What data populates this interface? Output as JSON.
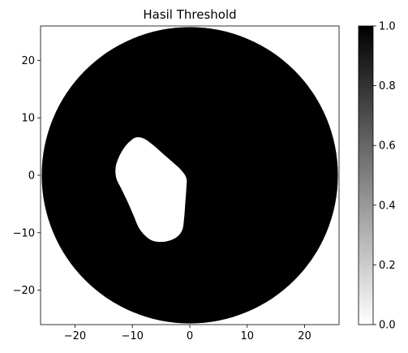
{
  "chart_data": {
    "type": "heatmap",
    "title": "Hasil Threshold",
    "xlabel": "",
    "ylabel": "",
    "xlim": [
      -26,
      26
    ],
    "ylim": [
      -26,
      26
    ],
    "x_ticks": [
      -20,
      -10,
      0,
      10,
      20
    ],
    "y_ticks": [
      -20,
      -10,
      0,
      10,
      20
    ],
    "x_tick_labels": [
      "−20",
      "−10",
      "0",
      "10",
      "20"
    ],
    "y_tick_labels": [
      "−20",
      "−10",
      "0",
      "10",
      "20"
    ],
    "grid": false,
    "background_value": 0,
    "disk": {
      "center": [
        0,
        0
      ],
      "radius": 25.8,
      "value": 1
    },
    "hole": {
      "value": 0,
      "outline": [
        [
          -9.3,
          6.6
        ],
        [
          -8.0,
          6.4
        ],
        [
          -6.3,
          5.2
        ],
        [
          -4.5,
          3.6
        ],
        [
          -2.9,
          2.2
        ],
        [
          -1.5,
          0.9
        ],
        [
          -0.6,
          -0.5
        ],
        [
          -0.6,
          -2.2
        ],
        [
          -0.8,
          -5.0
        ],
        [
          -1.0,
          -7.6
        ],
        [
          -1.3,
          -9.5
        ],
        [
          -2.2,
          -10.7
        ],
        [
          -3.6,
          -11.4
        ],
        [
          -5.0,
          -11.6
        ],
        [
          -6.5,
          -11.4
        ],
        [
          -7.8,
          -10.5
        ],
        [
          -8.9,
          -9.1
        ],
        [
          -9.8,
          -7.0
        ],
        [
          -10.8,
          -4.7
        ],
        [
          -11.9,
          -2.4
        ],
        [
          -12.8,
          -0.5
        ],
        [
          -12.9,
          1.5
        ],
        [
          -12.2,
          3.5
        ],
        [
          -11.2,
          5.1
        ],
        [
          -10.2,
          6.1
        ]
      ]
    },
    "colorbar": {
      "colormap": "gray_r",
      "min": 0,
      "max": 1,
      "ticks": [
        0.0,
        0.2,
        0.4,
        0.6,
        0.8,
        1.0
      ],
      "tick_labels": [
        "0.0",
        "0.2",
        "0.4",
        "0.6",
        "0.8",
        "1.0"
      ],
      "color_min": "#ffffff",
      "color_max": "#000000"
    }
  }
}
